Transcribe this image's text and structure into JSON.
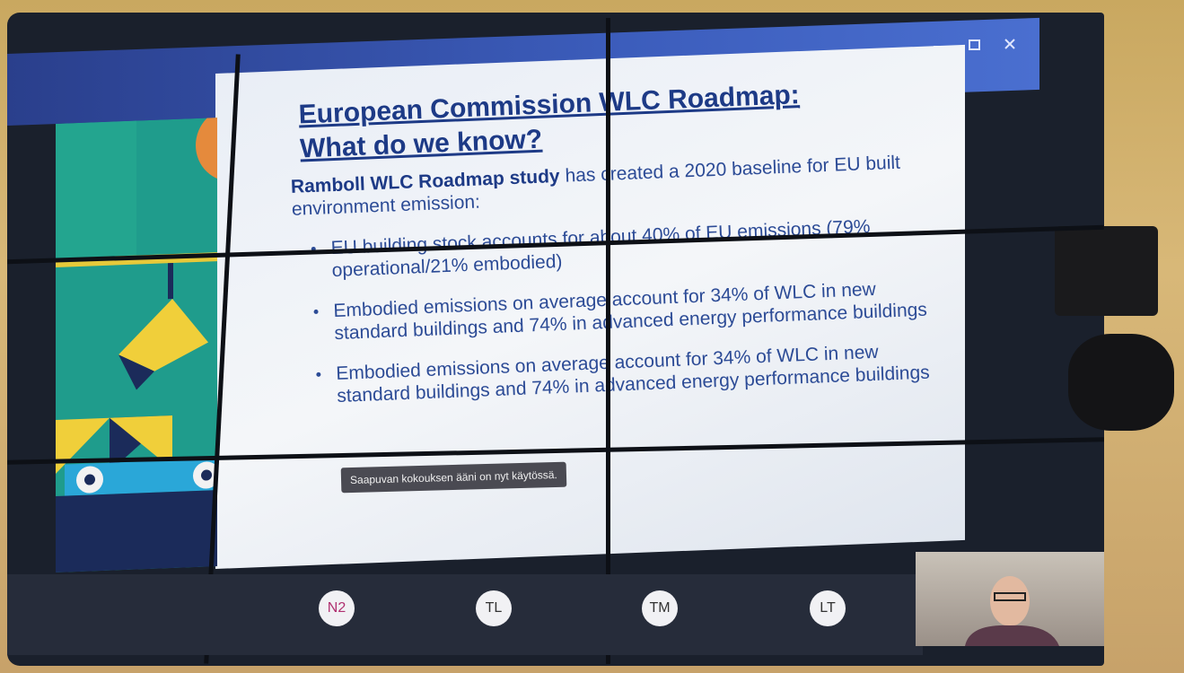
{
  "slide": {
    "title_lines": [
      "European Commission WLC Roadmap:",
      "What do we know?"
    ],
    "intro": {
      "bold": "Ramboll WLC Roadmap study",
      "text": "has created a 2020 baseline for EU built environment emission:"
    },
    "bullets": [
      "EU building stock accounts for about 40% of EU emissions (79% operational/21% embodied)",
      "Embodied emissions on average account for 34% of WLC in new standard buildings and 74% in advanced energy performance buildings",
      "Embodied emissions on average account for 34% of WLC in new standard buildings and 74% in advanced energy performance buildings"
    ]
  },
  "notification": "Saapuvan kokouksen ääni on nyt käytössä.",
  "participants": [
    "N2",
    "TL",
    "TM",
    "LT"
  ]
}
